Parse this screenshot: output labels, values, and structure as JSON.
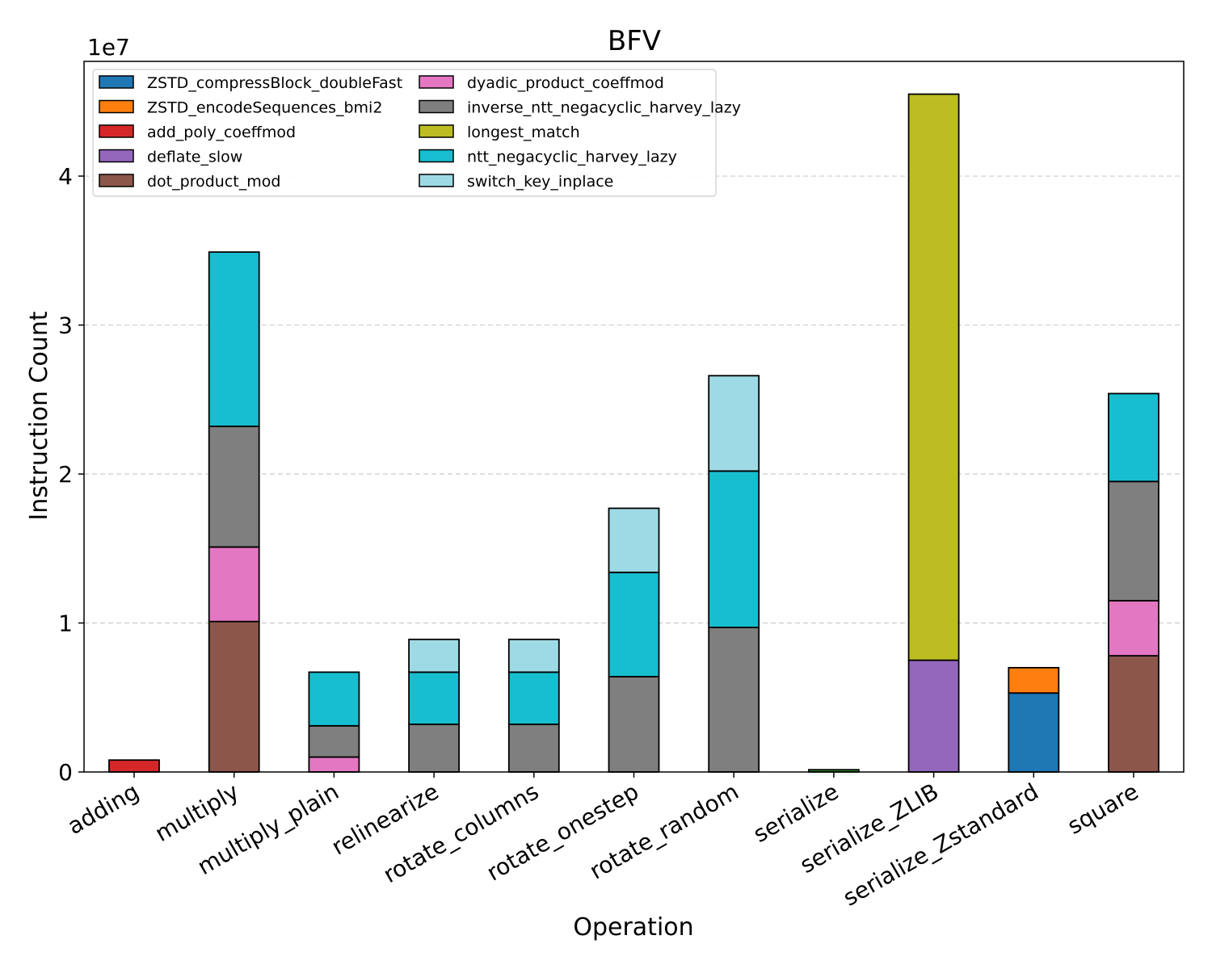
{
  "chart_data": {
    "type": "bar",
    "stacked": true,
    "title": "BFV",
    "xlabel": "Operation",
    "ylabel": "Instruction Count",
    "y_multiplier_label": "1e7",
    "ylim": [
      0,
      4.77
    ],
    "yticks": [
      0,
      1,
      2,
      3,
      4
    ],
    "ytick_labels": [
      "0",
      "1",
      "2",
      "3",
      "4"
    ],
    "grid": "horizontal dashed",
    "legend_position": "top-left",
    "legend_columns": 2,
    "categories": [
      "adding",
      "multiply",
      "multiply_plain",
      "relinearize",
      "rotate_columns",
      "rotate_onestep",
      "rotate_random",
      "serialize",
      "serialize_ZLIB",
      "serialize_Zstandard",
      "square"
    ],
    "series": [
      {
        "name": "ZSTD_compressBlock_doubleFast",
        "color": "#1f77b4",
        "values": [
          0,
          0,
          0,
          0,
          0,
          0,
          0,
          0,
          0,
          0.53,
          0
        ]
      },
      {
        "name": "ZSTD_encodeSequences_bmi2",
        "color": "#ff7f0e",
        "values": [
          0,
          0,
          0,
          0,
          0,
          0,
          0,
          0,
          0,
          0.17,
          0
        ]
      },
      {
        "name": "add_poly_coeffmod",
        "color": "#d62728",
        "values": [
          0.08,
          0,
          0,
          0,
          0,
          0,
          0,
          0,
          0,
          0,
          0
        ]
      },
      {
        "name": "deflate_slow",
        "color": "#9467bd",
        "values": [
          0,
          0,
          0,
          0,
          0,
          0,
          0,
          0,
          0.75,
          0,
          0
        ]
      },
      {
        "name": "dot_product_mod",
        "color": "#8c564b",
        "values": [
          0,
          1.01,
          0,
          0,
          0,
          0,
          0,
          0,
          0,
          0,
          0.78
        ]
      },
      {
        "name": "dyadic_product_coeffmod",
        "color": "#e377c2",
        "values": [
          0,
          0.5,
          0.1,
          0,
          0,
          0,
          0,
          0,
          0,
          0,
          0.37
        ]
      },
      {
        "name": "inverse_ntt_negacyclic_harvey_lazy",
        "color": "#7f7f7f",
        "values": [
          0,
          0.81,
          0.21,
          0.32,
          0.32,
          0.64,
          0.97,
          0,
          0,
          0,
          0.8
        ]
      },
      {
        "name": "longest_match",
        "color": "#bcbd22",
        "values": [
          0,
          0,
          0,
          0,
          0,
          0,
          0,
          0,
          3.8,
          0,
          0
        ]
      },
      {
        "name": "ntt_negacyclic_harvey_lazy",
        "color": "#17becf",
        "values": [
          0,
          1.17,
          0.36,
          0.35,
          0.35,
          0.7,
          1.05,
          0,
          0,
          0,
          0.59
        ]
      },
      {
        "name": "switch_key_inplace",
        "color": "#9edae5",
        "values": [
          0,
          0,
          0,
          0.22,
          0.22,
          0.43,
          0.64,
          0,
          0,
          0,
          0
        ]
      },
      {
        "name": "",
        "color": "#2ca02c",
        "values": [
          0,
          0,
          0,
          0,
          0,
          0,
          0,
          0.015,
          0,
          0,
          0
        ]
      }
    ]
  }
}
